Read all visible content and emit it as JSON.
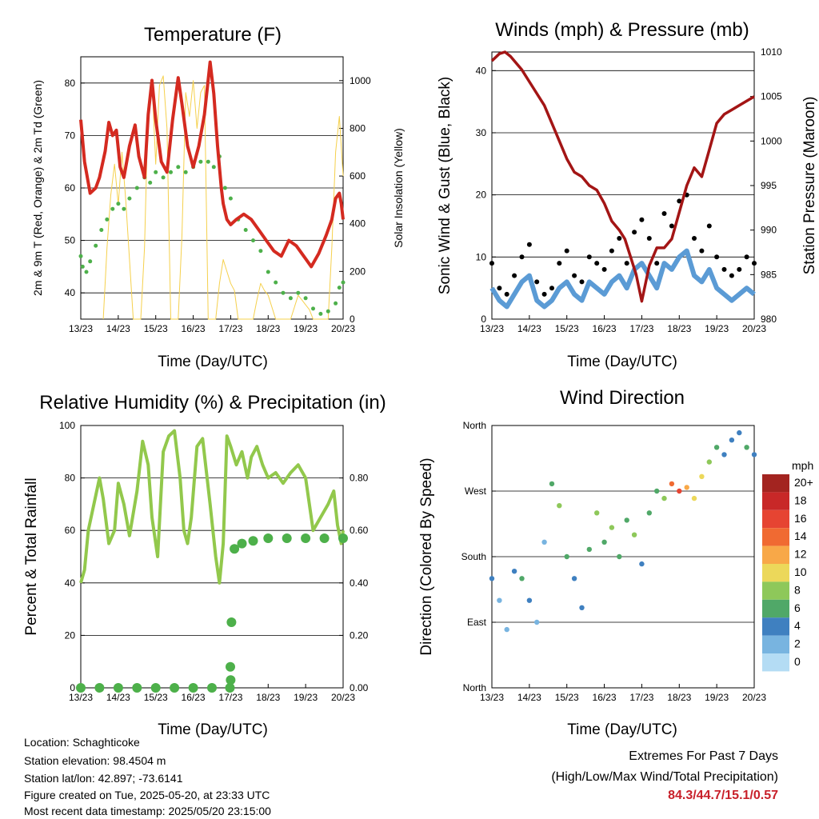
{
  "footer": {
    "location": "Location: Schaghticoke",
    "elevation": "Station elevation: 98.4504 m",
    "latlon": "Station lat/lon: 42.897; -73.6141",
    "created": "Figure created on Tue, 2025-05-20, at 23:33 UTC",
    "timestamp": "Most recent data timestamp: 2025/05/20 23:15:00"
  },
  "extremes": {
    "title": "Extremes For Past 7 Days",
    "subtitle": "(High/Low/Max Wind/Total Precipitation)",
    "values": "84.3/44.7/15.1/0.57",
    "color": "#c8202a"
  },
  "time_ticks": [
    "13/23",
    "14/23",
    "15/23",
    "16/23",
    "17/23",
    "18/23",
    "19/23",
    "20/23"
  ],
  "chart_data": [
    {
      "id": "temperature",
      "type": "line",
      "title": "Temperature (F)",
      "xlabel": "Time (Day/UTC)",
      "ylabel": "2m & 9m T (Red, Orange) & 2m Td (Green)",
      "y2label": "Solar Insolation (Yellow)",
      "xlim": [
        0,
        7
      ],
      "ylim": [
        35,
        85
      ],
      "y2lim": [
        0,
        1100
      ],
      "yticks": [
        "40",
        "50",
        "60",
        "70",
        "80"
      ],
      "y2ticks": [
        "0",
        "200",
        "400",
        "600",
        "800",
        "1000"
      ],
      "colors": {
        "t2m": "#d42a20",
        "t9m": "#f4901e",
        "td": "#4db04a",
        "solar": "#f5d04c"
      },
      "series": [
        {
          "key": "t2m",
          "axis": "left",
          "x": [
            0,
            0.1,
            0.25,
            0.4,
            0.5,
            0.65,
            0.75,
            0.85,
            0.95,
            1.05,
            1.15,
            1.3,
            1.45,
            1.55,
            1.7,
            1.8,
            1.9,
            2.0,
            2.15,
            2.3,
            2.45,
            2.6,
            2.7,
            2.85,
            3.0,
            3.15,
            3.3,
            3.45,
            3.55,
            3.65,
            3.75,
            3.8,
            3.9,
            4.0,
            4.15,
            4.35,
            4.55,
            4.75,
            4.95,
            5.15,
            5.35,
            5.55,
            5.75,
            5.95,
            6.15,
            6.35,
            6.55,
            6.7,
            6.8,
            6.9,
            6.95,
            7.0
          ],
          "y": [
            73,
            65,
            59,
            60,
            62,
            67,
            72.5,
            70,
            71,
            64,
            62,
            68,
            72,
            66,
            62,
            74,
            80.5,
            73,
            65,
            63,
            73,
            81,
            76,
            68,
            64,
            68,
            74,
            84,
            78,
            68,
            60,
            57,
            54,
            53,
            54,
            55,
            54,
            52,
            50,
            48,
            47,
            50,
            49,
            47,
            45,
            47.5,
            51,
            54,
            58,
            59,
            57,
            54
          ]
        },
        {
          "key": "td",
          "axis": "left",
          "x": [
            0,
            0.05,
            0.15,
            0.25,
            0.4,
            0.55,
            0.7,
            0.85,
            1.0,
            1.15,
            1.3,
            1.5,
            1.7,
            1.85,
            2.0,
            2.2,
            2.4,
            2.6,
            2.8,
            3.0,
            3.2,
            3.4,
            3.55,
            3.7,
            3.85,
            4.0,
            4.2,
            4.4,
            4.6,
            4.8,
            5.0,
            5.2,
            5.4,
            5.6,
            5.8,
            6.0,
            6.2,
            6.4,
            6.6,
            6.8,
            6.9,
            7.0
          ],
          "y": [
            47,
            45,
            44,
            46,
            49,
            52,
            54,
            56,
            57,
            56,
            58,
            60,
            62,
            61,
            63,
            62,
            63,
            64,
            63,
            64,
            65,
            65,
            64,
            66,
            60,
            58,
            54,
            52,
            50,
            48,
            44,
            42,
            40,
            39,
            40,
            39,
            37,
            36,
            36.5,
            38,
            41,
            42
          ]
        },
        {
          "key": "solar",
          "axis": "right",
          "x": [
            0.6,
            0.7,
            0.8,
            0.9,
            1.0,
            1.1,
            1.2,
            1.3,
            1.4,
            1.6,
            1.7,
            1.8,
            1.9,
            2.0,
            2.1,
            2.2,
            2.3,
            2.4,
            2.6,
            2.7,
            2.8,
            2.9,
            3.0,
            3.1,
            3.2,
            3.3,
            3.4,
            3.6,
            3.7,
            3.8,
            3.9,
            4.0,
            4.1,
            4.2,
            4.3,
            4.4,
            4.6,
            4.7,
            4.8,
            4.9,
            5.0,
            5.1,
            5.2,
            5.3,
            5.4,
            5.6,
            5.7,
            5.8,
            5.9,
            6.0,
            6.1,
            6.2,
            6.3,
            6.4,
            6.6,
            6.7,
            6.8,
            6.9,
            7.0
          ],
          "y": [
            0,
            300,
            520,
            650,
            480,
            700,
            500,
            250,
            0,
            0,
            300,
            900,
            1000,
            650,
            980,
            1020,
            800,
            0,
            0,
            350,
            950,
            850,
            1000,
            800,
            950,
            980,
            0,
            0,
            150,
            250,
            200,
            150,
            120,
            0,
            0,
            0,
            0,
            80,
            150,
            120,
            100,
            50,
            0,
            0,
            0,
            0,
            50,
            100,
            80,
            60,
            40,
            0,
            0,
            0,
            0,
            300,
            700,
            850,
            600
          ]
        }
      ]
    },
    {
      "id": "winds",
      "type": "scatter",
      "title": "Winds (mph) & Pressure (mb)",
      "xlabel": "Time (Day/UTC)",
      "ylabel": "Sonic Wind & Gust (Blue, Black)",
      "y2label": "Station Pressure (Maroon)",
      "xlim": [
        0,
        7
      ],
      "ylim": [
        0,
        43
      ],
      "y2lim": [
        980,
        1010
      ],
      "yticks": [
        "0",
        "10",
        "20",
        "30",
        "40"
      ],
      "y2ticks": [
        "980",
        "985",
        "990",
        "995",
        "1000",
        "1005",
        "1010"
      ],
      "colors": {
        "wind": "#5b9bd5",
        "gust": "#000000",
        "pressure": "#a31515"
      },
      "series": [
        {
          "key": "wind",
          "axis": "left",
          "x": [
            0,
            0.2,
            0.4,
            0.6,
            0.8,
            1.0,
            1.2,
            1.4,
            1.6,
            1.8,
            2.0,
            2.2,
            2.4,
            2.6,
            2.8,
            3.0,
            3.2,
            3.4,
            3.6,
            3.8,
            4.0,
            4.2,
            4.4,
            4.6,
            4.8,
            5.0,
            5.2,
            5.4,
            5.6,
            5.8,
            6.0,
            6.2,
            6.4,
            6.6,
            6.8,
            7.0
          ],
          "y": [
            5,
            3,
            2,
            4,
            6,
            7,
            3,
            2,
            3,
            5,
            6,
            4,
            3,
            6,
            5,
            4,
            6,
            7,
            5,
            8,
            9,
            7,
            5,
            9,
            8,
            10,
            11,
            7,
            6,
            8,
            5,
            4,
            3,
            4,
            5,
            4
          ]
        },
        {
          "key": "gust",
          "axis": "left",
          "x": [
            0,
            0.2,
            0.4,
            0.6,
            0.8,
            1.0,
            1.2,
            1.4,
            1.6,
            1.8,
            2.0,
            2.2,
            2.4,
            2.6,
            2.8,
            3.0,
            3.2,
            3.4,
            3.6,
            3.8,
            4.0,
            4.2,
            4.4,
            4.6,
            4.8,
            5.0,
            5.2,
            5.4,
            5.6,
            5.8,
            6.0,
            6.2,
            6.4,
            6.6,
            6.8,
            7.0
          ],
          "y": [
            9,
            5,
            4,
            7,
            10,
            12,
            6,
            4,
            5,
            9,
            11,
            7,
            6,
            10,
            9,
            8,
            11,
            13,
            9,
            14,
            16,
            13,
            9,
            17,
            15,
            19,
            20,
            13,
            11,
            15,
            10,
            8,
            7,
            8,
            10,
            9
          ]
        },
        {
          "key": "pressure",
          "axis": "right",
          "x": [
            0,
            0.2,
            0.35,
            0.5,
            0.8,
            1.1,
            1.4,
            1.7,
            2.0,
            2.2,
            2.4,
            2.6,
            2.8,
            3.0,
            3.2,
            3.4,
            3.55,
            3.7,
            3.85,
            4.0,
            4.2,
            4.4,
            4.6,
            4.8,
            5.0,
            5.2,
            5.4,
            5.6,
            5.8,
            6.0,
            6.2,
            6.4,
            6.6,
            6.8,
            7.0
          ],
          "y": [
            1009,
            1009.8,
            1010,
            1009.5,
            1008,
            1006,
            1004,
            1001,
            998,
            996.5,
            996,
            995,
            994.5,
            993,
            991,
            990,
            989,
            987,
            985,
            982,
            986,
            988,
            988,
            989,
            992,
            995,
            997,
            996,
            999,
            1002,
            1003,
            1003.5,
            1004,
            1004.5,
            1005
          ]
        }
      ]
    },
    {
      "id": "humidity",
      "type": "line",
      "title": "Relative Humidity (%) & Precipitation (in)",
      "xlabel": "Time (Day/UTC)",
      "ylabel": "Percent & Total Rainfall",
      "xlim": [
        0,
        7
      ],
      "ylim": [
        0,
        100
      ],
      "y2lim": [
        0,
        1
      ],
      "yticks": [
        "0",
        "20",
        "40",
        "60",
        "80",
        "100"
      ],
      "y2ticks": [
        "0.00",
        "0.20",
        "0.40",
        "0.60",
        "0.80"
      ],
      "colors": {
        "rh": "#92c84c",
        "precip": "#4db04a"
      },
      "series": [
        {
          "key": "rh",
          "axis": "left",
          "x": [
            0,
            0.1,
            0.2,
            0.35,
            0.5,
            0.6,
            0.75,
            0.9,
            1.0,
            1.15,
            1.3,
            1.5,
            1.65,
            1.8,
            1.9,
            2.05,
            2.2,
            2.35,
            2.5,
            2.65,
            2.75,
            2.85,
            2.95,
            3.1,
            3.25,
            3.45,
            3.6,
            3.7,
            3.8,
            3.85,
            3.9,
            4.0,
            4.15,
            4.3,
            4.45,
            4.55,
            4.7,
            4.85,
            5.0,
            5.2,
            5.4,
            5.6,
            5.8,
            6.0,
            6.2,
            6.4,
            6.6,
            6.75,
            6.85,
            6.95,
            7.0
          ],
          "y": [
            40,
            45,
            60,
            70,
            80,
            72,
            55,
            60,
            78,
            70,
            58,
            75,
            94,
            85,
            65,
            50,
            90,
            96,
            98,
            80,
            60,
            55,
            65,
            92,
            95,
            70,
            50,
            40,
            55,
            75,
            96,
            92,
            85,
            90,
            80,
            88,
            92,
            85,
            80,
            82,
            78,
            82,
            85,
            80,
            60,
            65,
            70,
            75,
            62,
            55,
            60
          ]
        },
        {
          "key": "precip",
          "axis": "right",
          "x": [
            0,
            0.5,
            1.0,
            1.5,
            2.0,
            2.5,
            3.0,
            3.5,
            3.98,
            3.99,
            4.0,
            4.02,
            4.1,
            4.3,
            4.6,
            5.0,
            5.5,
            6.0,
            6.5,
            7.0
          ],
          "y": [
            0,
            0,
            0,
            0,
            0,
            0,
            0,
            0,
            0,
            0.08,
            0.03,
            0.25,
            0.53,
            0.55,
            0.56,
            0.57,
            0.57,
            0.57,
            0.57,
            0.57
          ]
        }
      ]
    },
    {
      "id": "wind_direction",
      "type": "scatter",
      "title": "Wind Direction",
      "xlabel": "Time (Day/UTC)",
      "ylabel": "Direction (Colored By Speed)",
      "xlim": [
        0,
        7
      ],
      "ylim": [
        0,
        360
      ],
      "yticks": [
        "North",
        "East",
        "South",
        "West",
        "North"
      ],
      "legend": {
        "title": "mph",
        "labels": [
          "20+",
          "18",
          "16",
          "14",
          "12",
          "10",
          "8",
          "6",
          "4",
          "2",
          "0"
        ],
        "colors": [
          "#a32420",
          "#c82828",
          "#e64432",
          "#f06a32",
          "#f8a848",
          "#ecd85a",
          "#8ec85a",
          "#50a868",
          "#3f80c0",
          "#78b4e0",
          "#b4dcf4"
        ]
      },
      "x": [
        0,
        0.2,
        0.4,
        0.6,
        0.8,
        1.0,
        1.2,
        1.4,
        1.6,
        1.8,
        2.0,
        2.2,
        2.4,
        2.6,
        2.8,
        3.0,
        3.2,
        3.4,
        3.6,
        3.8,
        4.0,
        4.2,
        4.4,
        4.6,
        4.8,
        5.0,
        5.2,
        5.4,
        5.6,
        5.8,
        6.0,
        6.2,
        6.4,
        6.6,
        6.8,
        7.0
      ],
      "y": [
        150,
        120,
        80,
        160,
        150,
        120,
        90,
        200,
        280,
        250,
        180,
        150,
        110,
        190,
        240,
        200,
        220,
        180,
        230,
        210,
        170,
        240,
        270,
        260,
        280,
        270,
        275,
        260,
        290,
        310,
        330,
        320,
        340,
        350,
        330,
        320
      ],
      "speed": [
        3,
        2,
        2,
        4,
        5,
        3,
        2,
        2,
        5,
        8,
        6,
        4,
        3,
        5,
        7,
        6,
        7,
        5,
        6,
        8,
        3,
        5,
        6,
        7,
        13,
        15,
        12,
        10,
        9,
        8,
        5,
        4,
        3,
        4,
        5,
        4
      ]
    }
  ]
}
